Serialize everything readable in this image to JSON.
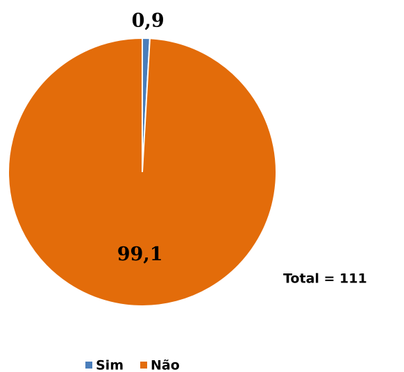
{
  "chart_data": {
    "type": "pie",
    "categories": [
      "Sim",
      "Não"
    ],
    "values": [
      0.9,
      99.1
    ],
    "value_labels": [
      "0,9",
      "99,1"
    ],
    "colors": [
      "#4a7ebb",
      "#e36c0a"
    ],
    "annotation": "Total = 111",
    "legend": "bottom"
  }
}
